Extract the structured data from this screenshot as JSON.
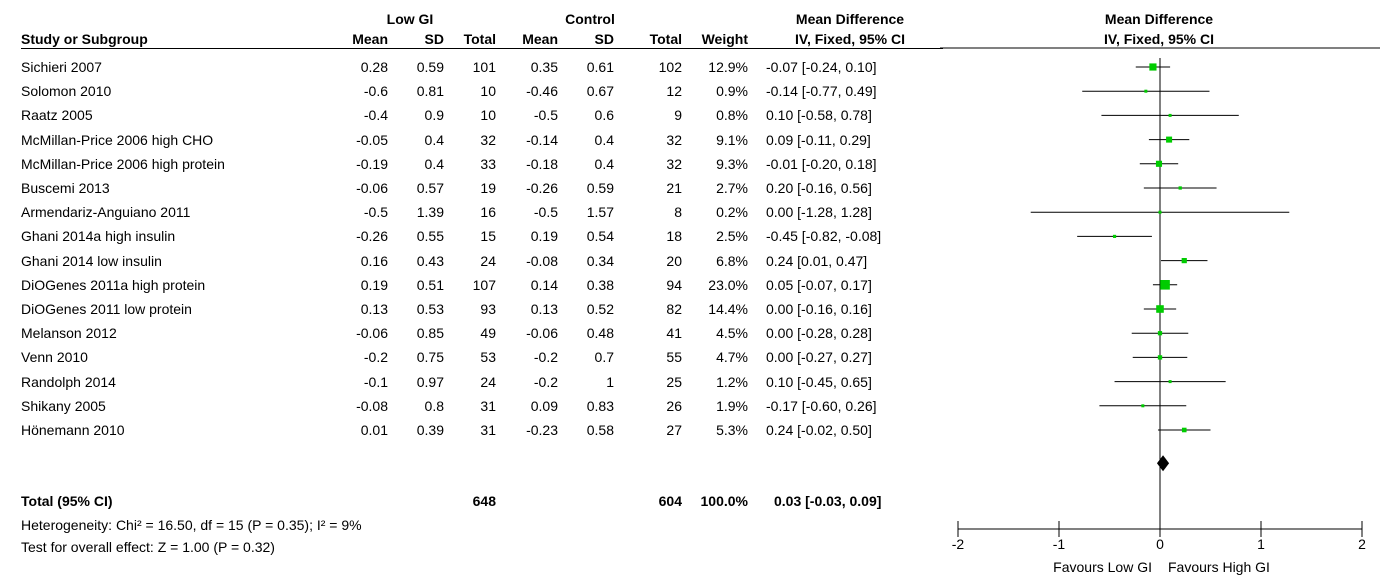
{
  "headers": {
    "group1": "Low GI",
    "group2": "Control",
    "effect_top": "Mean Difference",
    "effect_sub": "IV, Fixed, 95% CI",
    "study": "Study or Subgroup",
    "mean": "Mean",
    "sd": "SD",
    "total": "Total",
    "weight": "Weight",
    "plot_top": "Mean Difference",
    "plot_sub": "IV, Fixed, 95% CI"
  },
  "studies": [
    {
      "name": "Sichieri 2007",
      "m1": "0.28",
      "sd1": "0.59",
      "n1": "101",
      "m2": "0.35",
      "sd2": "0.61",
      "n2": "102",
      "weight": "12.9%",
      "ci": "-0.07 [-0.24, 0.10]"
    },
    {
      "name": "Solomon 2010",
      "m1": "-0.6",
      "sd1": "0.81",
      "n1": "10",
      "m2": "-0.46",
      "sd2": "0.67",
      "n2": "12",
      "weight": "0.9%",
      "ci": "-0.14 [-0.77, 0.49]"
    },
    {
      "name": "Raatz 2005",
      "m1": "-0.4",
      "sd1": "0.9",
      "n1": "10",
      "m2": "-0.5",
      "sd2": "0.6",
      "n2": "9",
      "weight": "0.8%",
      "ci": "0.10 [-0.58, 0.78]"
    },
    {
      "name": "McMillan-Price 2006 high CHO",
      "m1": "-0.05",
      "sd1": "0.4",
      "n1": "32",
      "m2": "-0.14",
      "sd2": "0.4",
      "n2": "32",
      "weight": "9.1%",
      "ci": "0.09 [-0.11, 0.29]"
    },
    {
      "name": "McMillan-Price 2006 high protein",
      "m1": "-0.19",
      "sd1": "0.4",
      "n1": "33",
      "m2": "-0.18",
      "sd2": "0.4",
      "n2": "32",
      "weight": "9.3%",
      "ci": "-0.01 [-0.20, 0.18]"
    },
    {
      "name": "Buscemi 2013",
      "m1": "-0.06",
      "sd1": "0.57",
      "n1": "19",
      "m2": "-0.26",
      "sd2": "0.59",
      "n2": "21",
      "weight": "2.7%",
      "ci": "0.20 [-0.16, 0.56]"
    },
    {
      "name": "Armendariz-Anguiano 2011",
      "m1": "-0.5",
      "sd1": "1.39",
      "n1": "16",
      "m2": "-0.5",
      "sd2": "1.57",
      "n2": "8",
      "weight": "0.2%",
      "ci": "0.00 [-1.28, 1.28]"
    },
    {
      "name": "Ghani 2014a high insulin",
      "m1": "-0.26",
      "sd1": "0.55",
      "n1": "15",
      "m2": "0.19",
      "sd2": "0.54",
      "n2": "18",
      "weight": "2.5%",
      "ci": "-0.45 [-0.82, -0.08]"
    },
    {
      "name": "Ghani 2014  low insulin",
      "m1": "0.16",
      "sd1": "0.43",
      "n1": "24",
      "m2": "-0.08",
      "sd2": "0.34",
      "n2": "20",
      "weight": "6.8%",
      "ci": "0.24 [0.01, 0.47]"
    },
    {
      "name": "DiOGenes 2011a high protein",
      "m1": "0.19",
      "sd1": "0.51",
      "n1": "107",
      "m2": "0.14",
      "sd2": "0.38",
      "n2": "94",
      "weight": "23.0%",
      "ci": "0.05 [-0.07, 0.17]"
    },
    {
      "name": "DiOGenes 2011 low protein",
      "m1": "0.13",
      "sd1": "0.53",
      "n1": "93",
      "m2": "0.13",
      "sd2": "0.52",
      "n2": "82",
      "weight": "14.4%",
      "ci": "0.00 [-0.16, 0.16]"
    },
    {
      "name": "Melanson 2012",
      "m1": "-0.06",
      "sd1": "0.85",
      "n1": "49",
      "m2": "-0.06",
      "sd2": "0.48",
      "n2": "41",
      "weight": "4.5%",
      "ci": "0.00 [-0.28, 0.28]"
    },
    {
      "name": "Venn 2010",
      "m1": "-0.2",
      "sd1": "0.75",
      "n1": "53",
      "m2": "-0.2",
      "sd2": "0.7",
      "n2": "55",
      "weight": "4.7%",
      "ci": "0.00 [-0.27, 0.27]"
    },
    {
      "name": "Randolph 2014",
      "m1": "-0.1",
      "sd1": "0.97",
      "n1": "24",
      "m2": "-0.2",
      "sd2": "1",
      "n2": "25",
      "weight": "1.2%",
      "ci": "0.10 [-0.45, 0.65]"
    },
    {
      "name": "Shikany 2005",
      "m1": "-0.08",
      "sd1": "0.8",
      "n1": "31",
      "m2": "0.09",
      "sd2": "0.83",
      "n2": "26",
      "weight": "1.9%",
      "ci": "-0.17 [-0.60, 0.26]"
    },
    {
      "name": "Hönemann 2010",
      "m1": "0.01",
      "sd1": "0.39",
      "n1": "31",
      "m2": "-0.23",
      "sd2": "0.58",
      "n2": "27",
      "weight": "5.3%",
      "ci": "0.24 [-0.02, 0.50]"
    }
  ],
  "total": {
    "label": "Total (95% CI)",
    "n1": "648",
    "n2": "604",
    "weight": "100.0%",
    "ci": "0.03 [-0.03, 0.09]"
  },
  "heterogeneity": "Heterogeneity: Chi² = 16.50, df = 15 (P = 0.35); I² = 9%",
  "overall_effect": "Test for overall effect: Z = 1.00 (P = 0.32)",
  "colors": {
    "marker": "#00cc00",
    "diamond": "#000000",
    "line": "#000000"
  },
  "chart_data": {
    "type": "forest",
    "xlim": [
      -2,
      2
    ],
    "xticks": [
      "-2",
      "-1",
      "0",
      "1",
      "2"
    ],
    "xlabel_left": "Favours Low GI",
    "xlabel_right": "Favours High GI",
    "points": [
      {
        "md": -0.07,
        "lo": -0.24,
        "hi": 0.1,
        "weight": 12.9
      },
      {
        "md": -0.14,
        "lo": -0.77,
        "hi": 0.49,
        "weight": 0.9
      },
      {
        "md": 0.1,
        "lo": -0.58,
        "hi": 0.78,
        "weight": 0.8
      },
      {
        "md": 0.09,
        "lo": -0.11,
        "hi": 0.29,
        "weight": 9.1
      },
      {
        "md": -0.01,
        "lo": -0.2,
        "hi": 0.18,
        "weight": 9.3
      },
      {
        "md": 0.2,
        "lo": -0.16,
        "hi": 0.56,
        "weight": 2.7
      },
      {
        "md": 0.0,
        "lo": -1.28,
        "hi": 1.28,
        "weight": 0.2
      },
      {
        "md": -0.45,
        "lo": -0.82,
        "hi": -0.08,
        "weight": 2.5
      },
      {
        "md": 0.24,
        "lo": 0.01,
        "hi": 0.47,
        "weight": 6.8
      },
      {
        "md": 0.05,
        "lo": -0.07,
        "hi": 0.17,
        "weight": 23.0
      },
      {
        "md": 0.0,
        "lo": -0.16,
        "hi": 0.16,
        "weight": 14.4
      },
      {
        "md": 0.0,
        "lo": -0.28,
        "hi": 0.28,
        "weight": 4.5
      },
      {
        "md": 0.0,
        "lo": -0.27,
        "hi": 0.27,
        "weight": 4.7
      },
      {
        "md": 0.1,
        "lo": -0.45,
        "hi": 0.65,
        "weight": 1.2
      },
      {
        "md": -0.17,
        "lo": -0.6,
        "hi": 0.26,
        "weight": 1.9
      },
      {
        "md": 0.24,
        "lo": -0.02,
        "hi": 0.5,
        "weight": 5.3
      }
    ],
    "pooled": {
      "md": 0.03,
      "lo": -0.03,
      "hi": 0.09
    }
  }
}
